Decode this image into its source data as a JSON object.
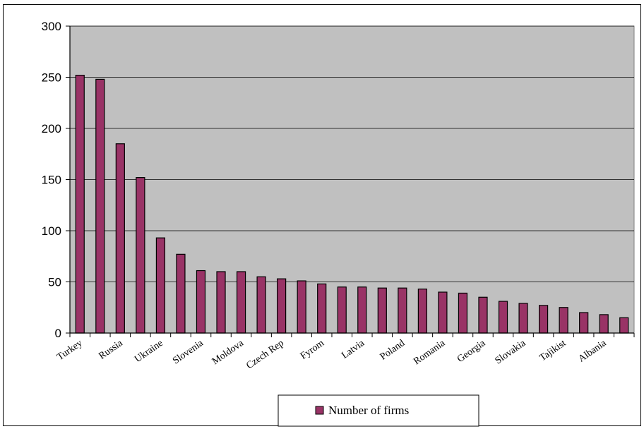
{
  "chart_data": {
    "type": "bar",
    "categories": [
      "Turkey",
      "",
      "Russia",
      "",
      "Ukraine",
      "",
      "Slovenia",
      "",
      "Moldova",
      "",
      "Czech Rep",
      "",
      "Fyrom",
      "",
      "Latvia",
      "",
      "Poland",
      "",
      "Romania",
      "",
      "Georgia",
      "",
      "Slovakia",
      "",
      "Tajikist",
      "",
      "Albania",
      ""
    ],
    "series": [
      {
        "name": "Number of firms",
        "values": [
          252,
          248,
          185,
          152,
          93,
          77,
          61,
          60,
          60,
          55,
          53,
          51,
          48,
          45,
          45,
          44,
          44,
          43,
          40,
          39,
          35,
          31,
          29,
          27,
          25,
          20,
          18,
          15
        ]
      }
    ],
    "ylim": [
      0,
      300
    ],
    "yticks": [
      0,
      50,
      100,
      150,
      200,
      250,
      300
    ],
    "grid": true,
    "legend": "bottom-center",
    "colors": {
      "plot_background": "#c0c0c0",
      "bar_fill": "#993366",
      "bar_stroke": "#000000",
      "grid": "#000000"
    }
  }
}
